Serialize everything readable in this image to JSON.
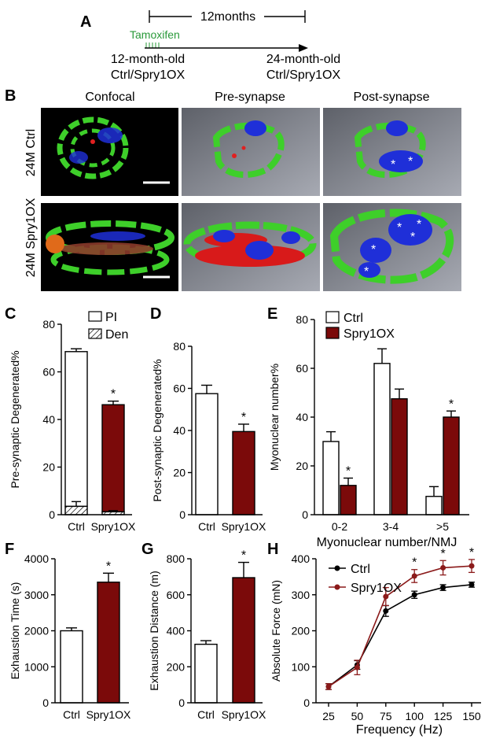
{
  "colors": {
    "ctrl": "#ffffff",
    "spry": "#7b0a0a",
    "line_ctrl": "#000000",
    "line_spry": "#8b1a1a",
    "tamoxifen": "#2a9a3a",
    "green_nmj": "#3ecf2a",
    "blue_nmj": "#1f2fd8"
  },
  "panelA": {
    "label": "A",
    "duration": "12months",
    "tamoxifen": "Tamoxifen",
    "start_line1": "12-month-old",
    "start_line2": "Ctrl/Spry1OX",
    "end_line1": "24-month-old",
    "end_line2": "Ctrl/Spry1OX"
  },
  "panelB": {
    "label": "B",
    "columns": [
      "Confocal",
      "Pre-synapse",
      "Post-synapse"
    ],
    "rows": [
      "24M Ctrl",
      "24M Spry1OX"
    ],
    "marker": "*"
  },
  "chart_data": [
    {
      "panel": "C",
      "type": "bar",
      "stacked": true,
      "categories": [
        "Ctrl",
        "Spry1OX"
      ],
      "ylabel": "Pre-synaptic Degenerated%",
      "ylim": [
        0,
        80
      ],
      "yticks": [
        0,
        20,
        40,
        60,
        80
      ],
      "legend": [
        "PI",
        "Den"
      ],
      "series": [
        {
          "name": "PI",
          "values": [
            65,
            45
          ],
          "errors": [
            1.2,
            1.5
          ]
        },
        {
          "name": "Den",
          "values": [
            3.5,
            1.2
          ],
          "errors": [
            2,
            0.5
          ]
        }
      ],
      "totals": [
        68.5,
        46.2
      ],
      "significance": [
        "",
        "*"
      ]
    },
    {
      "panel": "D",
      "type": "bar",
      "categories": [
        "Ctrl",
        "Spry1OX"
      ],
      "ylabel": "Post-synaptic Degenerated%",
      "ylim": [
        0,
        80
      ],
      "yticks": [
        0,
        20,
        40,
        60,
        80
      ],
      "values": [
        57.5,
        39.5
      ],
      "errors": [
        4,
        3.5
      ],
      "significance": [
        "",
        "*"
      ]
    },
    {
      "panel": "E",
      "type": "bar",
      "categories": [
        "0-2",
        "3-4",
        ">5"
      ],
      "xlabel": "Myonuclear number/NMJ",
      "ylabel": "Myonuclear number%",
      "ylim": [
        0,
        80
      ],
      "yticks": [
        0,
        20,
        40,
        60,
        80
      ],
      "legend": "top-left",
      "series": [
        {
          "name": "Ctrl",
          "values": [
            30,
            62,
            7.5
          ],
          "errors": [
            4,
            6,
            4
          ]
        },
        {
          "name": "Spry1OX",
          "values": [
            12,
            47.5,
            40
          ],
          "errors": [
            3,
            4,
            2.5
          ]
        }
      ],
      "significance": [
        "*",
        "",
        "*"
      ]
    },
    {
      "panel": "F",
      "type": "bar",
      "categories": [
        "Ctrl",
        "Spry1OX"
      ],
      "ylabel": "Exhaustion Time (s)",
      "ylim": [
        0,
        4000
      ],
      "yticks": [
        0,
        1000,
        2000,
        3000,
        4000
      ],
      "values": [
        2000,
        3350
      ],
      "errors": [
        80,
        250
      ],
      "significance": [
        "",
        "*"
      ]
    },
    {
      "panel": "G",
      "type": "bar",
      "categories": [
        "Ctrl",
        "Spry1OX"
      ],
      "ylabel": "Exhaustion Distance (m)",
      "ylim": [
        0,
        800
      ],
      "yticks": [
        0,
        200,
        400,
        600,
        800
      ],
      "values": [
        325,
        695
      ],
      "errors": [
        20,
        85
      ],
      "significance": [
        "",
        "*"
      ]
    },
    {
      "panel": "H",
      "type": "line",
      "x": [
        25,
        50,
        75,
        100,
        125,
        150
      ],
      "xticks": [
        25,
        50,
        75,
        100,
        125,
        150
      ],
      "xlabel": "Frequency (Hz)",
      "ylabel": "Absolute Force (mN)",
      "ylim": [
        0,
        400
      ],
      "yticks": [
        0,
        100,
        200,
        300,
        400
      ],
      "legend": "top-left",
      "series": [
        {
          "name": "Ctrl",
          "values": [
            45,
            105,
            255,
            300,
            320,
            328
          ],
          "errors": [
            8,
            12,
            15,
            10,
            8,
            7
          ]
        },
        {
          "name": "Spry1OX",
          "values": [
            45,
            98,
            295,
            352,
            375,
            380
          ],
          "errors": [
            8,
            20,
            25,
            18,
            20,
            18
          ]
        }
      ],
      "significance": [
        "",
        "",
        "",
        "*",
        "*",
        "*"
      ]
    }
  ]
}
